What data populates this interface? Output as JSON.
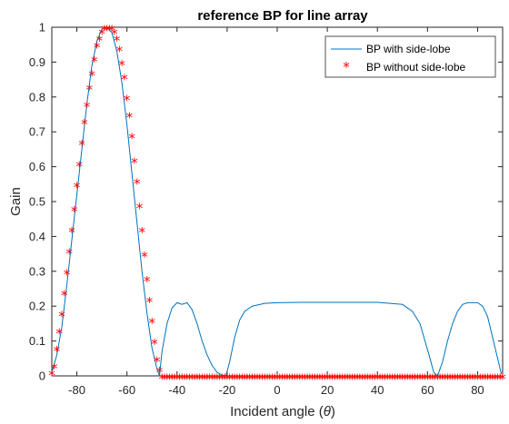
{
  "chart_data": {
    "type": "line",
    "title": "reference BP for line array",
    "xlabel_prefix": "Incident angle (",
    "xlabel_symbol": "θ",
    "xlabel_suffix": ")",
    "ylabel": "Gain",
    "xlim": [
      -90,
      90
    ],
    "ylim": [
      0,
      1
    ],
    "xticks": [
      -80,
      -60,
      -40,
      -20,
      0,
      20,
      40,
      60,
      80
    ],
    "yticks": [
      0,
      0.1,
      0.2,
      0.3,
      0.4,
      0.5,
      0.6,
      0.7,
      0.8,
      0.9,
      1
    ],
    "xtick_labels": [
      "-80",
      "-60",
      "-40",
      "-20",
      "0",
      "20",
      "40",
      "60",
      "80"
    ],
    "ytick_labels": [
      "0",
      "0.1",
      "0.2",
      "0.3",
      "0.4",
      "0.5",
      "0.6",
      "0.7",
      "0.8",
      "0.9",
      "1"
    ],
    "grid": false,
    "legend_position": "top-right",
    "series": [
      {
        "name": "BP with side-lobe",
        "style": "line",
        "color": "#0072BD",
        "x": [
          -90,
          -88,
          -86,
          -84,
          -82,
          -80,
          -78,
          -76,
          -74,
          -72,
          -70,
          -68,
          -66,
          -64,
          -62,
          -60,
          -58,
          -56,
          -54,
          -52,
          -50,
          -48,
          -47,
          -46,
          -44,
          -42,
          -40,
          -38,
          -36,
          -34,
          -32,
          -30,
          -28,
          -26,
          -24,
          -22,
          -20.5,
          -19,
          -17,
          -15,
          -13,
          -10,
          -5,
          0,
          10,
          20,
          30,
          40,
          50,
          54,
          57,
          59,
          61,
          62.5,
          64,
          66,
          68,
          70,
          72,
          74,
          76,
          78,
          80,
          82,
          84,
          86,
          88,
          89.5
        ],
        "y": [
          0.01,
          0.06,
          0.14,
          0.26,
          0.39,
          0.52,
          0.65,
          0.78,
          0.89,
          0.96,
          0.995,
          1.0,
          0.985,
          0.93,
          0.84,
          0.72,
          0.58,
          0.44,
          0.3,
          0.18,
          0.08,
          0.02,
          0.0,
          0.07,
          0.15,
          0.195,
          0.21,
          0.205,
          0.21,
          0.19,
          0.15,
          0.1,
          0.06,
          0.03,
          0.01,
          0.002,
          0.0,
          0.04,
          0.11,
          0.16,
          0.185,
          0.2,
          0.208,
          0.21,
          0.211,
          0.211,
          0.211,
          0.211,
          0.205,
          0.185,
          0.15,
          0.1,
          0.05,
          0.01,
          0.0,
          0.04,
          0.1,
          0.15,
          0.185,
          0.205,
          0.21,
          0.21,
          0.21,
          0.2,
          0.17,
          0.11,
          0.05,
          0.005
        ]
      },
      {
        "name": "BP without side-lobe",
        "style": "markers",
        "marker": "asterisk",
        "color": "#FF0000",
        "x": [
          -90,
          -89,
          -88,
          -87,
          -86,
          -85,
          -84,
          -83,
          -82,
          -81,
          -80,
          -79,
          -78,
          -77,
          -76,
          -75,
          -74,
          -73,
          -72,
          -71,
          -70,
          -69,
          -68,
          -67,
          -66,
          -65,
          -64,
          -63,
          -62,
          -61,
          -60,
          -59,
          -58,
          -57,
          -56,
          -55,
          -54,
          -53,
          -52,
          -51,
          -50,
          -49,
          -48,
          -47,
          -46,
          -45,
          -44,
          -43,
          -42,
          -41,
          -40,
          -39,
          -38,
          -37,
          -36,
          -35,
          -34,
          -33,
          -32,
          -31,
          -30,
          -29,
          -28,
          -27,
          -26,
          -25,
          -24,
          -23,
          -22,
          -21,
          -20,
          -19,
          -18,
          -17,
          -16,
          -15,
          -14,
          -13,
          -12,
          -11,
          -10,
          -9,
          -8,
          -7,
          -6,
          -5,
          -4,
          -3,
          -2,
          -1,
          0,
          1,
          2,
          3,
          4,
          5,
          6,
          7,
          8,
          9,
          10,
          11,
          12,
          13,
          14,
          15,
          16,
          17,
          18,
          19,
          20,
          21,
          22,
          23,
          24,
          25,
          26,
          27,
          28,
          29,
          30,
          31,
          32,
          33,
          34,
          35,
          36,
          37,
          38,
          39,
          40,
          41,
          42,
          43,
          44,
          45,
          46,
          47,
          48,
          49,
          50,
          51,
          52,
          53,
          54,
          55,
          56,
          57,
          58,
          59,
          60,
          61,
          62,
          63,
          64,
          65,
          66,
          67,
          68,
          69,
          70,
          71,
          72,
          73,
          74,
          75,
          76,
          77,
          78,
          79,
          80,
          81,
          82,
          83,
          84,
          85,
          86,
          87,
          88,
          89,
          90
        ],
        "y": [
          0.01,
          0.03,
          0.08,
          0.13,
          0.18,
          0.24,
          0.3,
          0.36,
          0.42,
          0.48,
          0.55,
          0.61,
          0.67,
          0.73,
          0.78,
          0.83,
          0.87,
          0.91,
          0.95,
          0.97,
          0.99,
          1.0,
          1.0,
          1.0,
          1.0,
          0.99,
          0.97,
          0.94,
          0.9,
          0.86,
          0.8,
          0.75,
          0.69,
          0.62,
          0.56,
          0.49,
          0.42,
          0.35,
          0.28,
          0.22,
          0.16,
          0.1,
          0.05,
          0.02,
          0,
          0,
          0,
          0,
          0,
          0,
          0,
          0,
          0,
          0,
          0,
          0,
          0,
          0,
          0,
          0,
          0,
          0,
          0,
          0,
          0,
          0,
          0,
          0,
          0,
          0,
          0,
          0,
          0,
          0,
          0,
          0,
          0,
          0,
          0,
          0,
          0,
          0,
          0,
          0,
          0,
          0,
          0,
          0,
          0,
          0,
          0,
          0,
          0,
          0,
          0,
          0,
          0,
          0,
          0,
          0,
          0,
          0,
          0,
          0,
          0,
          0,
          0,
          0,
          0,
          0,
          0,
          0,
          0,
          0,
          0,
          0,
          0,
          0,
          0,
          0,
          0,
          0,
          0,
          0,
          0,
          0,
          0,
          0,
          0,
          0,
          0,
          0,
          0,
          0,
          0,
          0,
          0,
          0,
          0,
          0,
          0,
          0,
          0,
          0,
          0,
          0,
          0,
          0,
          0,
          0,
          0,
          0,
          0,
          0,
          0,
          0,
          0,
          0,
          0,
          0,
          0,
          0,
          0,
          0,
          0,
          0,
          0,
          0,
          0,
          0,
          0,
          0,
          0,
          0,
          0,
          0,
          0,
          0,
          0,
          0,
          0
        ]
      }
    ]
  }
}
